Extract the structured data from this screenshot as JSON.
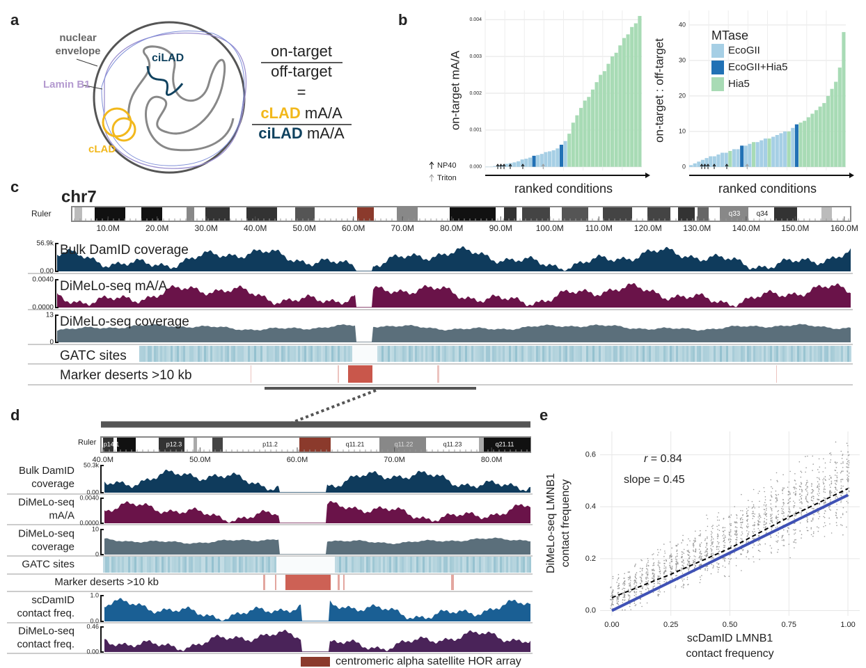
{
  "panel_a": {
    "letter": "a",
    "nuclear": "nuclear",
    "envelope": "envelope",
    "lamin": "Lamin B1",
    "cilad": "ciLAD",
    "clad": "cLAD",
    "numerator": "on-target",
    "denominator": "off-target",
    "equals": "=",
    "clad_term": "cLAD",
    "num_unit": "mA/A",
    "cilad_term": "ciLAD",
    "den_unit": "mA/A"
  },
  "panel_b": {
    "letter": "b",
    "detergents": [
      "NP40",
      "Triton"
    ],
    "legend": {
      "title": "MTase",
      "items": [
        {
          "name": "EcoGII",
          "color": "#a6cfe5"
        },
        {
          "name": "EcoGII+Hia5",
          "color": "#2171b5"
        },
        {
          "name": "Hia5",
          "color": "#a8dbb5"
        }
      ]
    },
    "charts": [
      {
        "type": "bar",
        "ylabel": "on-target mA/A",
        "xlabel": "ranked conditions",
        "ylim": [
          -0.0001,
          0.00425
        ],
        "yticks": [
          {
            "value": 0,
            "label": "0.000"
          },
          {
            "value": 0.001,
            "label": "0.001"
          },
          {
            "value": 0.002,
            "label": "0.002"
          },
          {
            "value": 0.003,
            "label": "0.003"
          },
          {
            "value": 0.004,
            "label": "0.004"
          }
        ],
        "values": [
          0,
          0,
          2e-05,
          3e-05,
          5e-05,
          8e-05,
          0.0001,
          0.00012,
          0.00015,
          0.0002,
          0.00022,
          0.00025,
          0.0003,
          0.00032,
          0.00035,
          0.0004,
          0.00042,
          0.00045,
          0.0005,
          0.0006,
          0.0007,
          0.0009,
          0.0012,
          0.0014,
          0.0016,
          0.0018,
          0.0019,
          0.0021,
          0.0023,
          0.0025,
          0.0026,
          0.0028,
          0.003,
          0.0031,
          0.0033,
          0.0035,
          0.0036,
          0.0038,
          0.0039,
          0.0041
        ],
        "groups": [
          0,
          0,
          0,
          0,
          0,
          0,
          0,
          0,
          0,
          0,
          0,
          0,
          1,
          0,
          0,
          0,
          0,
          0,
          0,
          1,
          0,
          2,
          2,
          2,
          2,
          2,
          2,
          2,
          2,
          2,
          2,
          2,
          2,
          2,
          2,
          2,
          2,
          2,
          2,
          2
        ]
      },
      {
        "type": "bar",
        "ylabel": "on-target : off-target",
        "xlabel": "ranked conditions",
        "ylim": [
          -1,
          44.1
        ],
        "yticks": [
          0,
          10,
          20,
          30,
          40
        ],
        "values": [
          0.5,
          1,
          1.5,
          2,
          2.5,
          3,
          3,
          3.5,
          4,
          4,
          4.5,
          5,
          5,
          6,
          6,
          6.5,
          7,
          7,
          7.5,
          8,
          8,
          8.5,
          9,
          9.5,
          10,
          10,
          11,
          12,
          12.5,
          13,
          14,
          15,
          16,
          17,
          18,
          20,
          22,
          24,
          28,
          38
        ],
        "groups": [
          0,
          0,
          0,
          0,
          0,
          0,
          0,
          0,
          0,
          0,
          2,
          0,
          0,
          1,
          0,
          0,
          2,
          0,
          0,
          0,
          2,
          0,
          0,
          0,
          0,
          2,
          0,
          1,
          2,
          2,
          2,
          2,
          2,
          2,
          2,
          2,
          2,
          2,
          2,
          2
        ]
      }
    ]
  },
  "panel_c": {
    "letter": "c",
    "chrom": "chr7",
    "ruler": "Ruler",
    "xlim": [
      2.6,
      161.3
    ],
    "bands": [
      "q33",
      "q34"
    ],
    "xticks": [
      {
        "value": 10,
        "label": "10.0M"
      },
      {
        "value": 20,
        "label": "20.0M"
      },
      {
        "value": 30,
        "label": "30.0M"
      },
      {
        "value": 40,
        "label": "40.0M"
      },
      {
        "value": 50,
        "label": "50.0M"
      },
      {
        "value": 60,
        "label": "60.0M"
      },
      {
        "value": 70,
        "label": "70.0M"
      },
      {
        "value": 80,
        "label": "80.0M"
      },
      {
        "value": 90,
        "label": "90.0M"
      },
      {
        "value": 100,
        "label": "100.0M"
      },
      {
        "value": 110,
        "label": "110.0M"
      },
      {
        "value": 120,
        "label": "120.0M"
      },
      {
        "value": 130,
        "label": "130.0M"
      },
      {
        "value": 140,
        "label": "140.0M"
      },
      {
        "value": 150,
        "label": "150.0M"
      },
      {
        "value": 160,
        "label": "160.0M"
      }
    ],
    "tracks": [
      {
        "label": "Bulk DamID coverage",
        "color": "#0f3b5c",
        "ylim": [
          0,
          56900
        ],
        "yticks": [
          {
            "value": 56900,
            "label": "56.9k"
          },
          {
            "value": 0,
            "label": "0.00"
          }
        ]
      },
      {
        "label": "DiMeLo-seq mA/A",
        "color": "#6a1349",
        "ylim": [
          0,
          0.004
        ],
        "yticks": [
          {
            "value": 0.004,
            "label": "0.0040"
          },
          {
            "value": 0,
            "label": "0.0000"
          }
        ]
      },
      {
        "label": "DiMeLo-seq coverage",
        "color": "#5b6f7b",
        "ylim": [
          0,
          13
        ],
        "yticks": [
          13,
          0
        ]
      },
      {
        "label": "GATC sites"
      },
      {
        "label": "Marker deserts >10 kb"
      }
    ]
  },
  "panel_d": {
    "letter": "d",
    "ruler": "Ruler",
    "xlim": [
      39.8,
      84.0
    ],
    "bands": [
      "p14.1",
      "p12.3",
      "p11.2",
      "q11.21",
      "q11.22",
      "q11.23",
      "q21.11"
    ],
    "xticks": [
      {
        "value": 40,
        "label": "40.0M"
      },
      {
        "value": 50,
        "label": "50.0M"
      },
      {
        "value": 60,
        "label": "60.0M"
      },
      {
        "value": 70,
        "label": "70.0M"
      },
      {
        "value": 80,
        "label": "80.0M"
      }
    ],
    "tracks": [
      {
        "label": [
          "Bulk DamID",
          "coverage"
        ],
        "color": "#0f3b5c",
        "ylim": [
          0,
          50300
        ],
        "yticks": [
          {
            "value": 50300,
            "label": "50.3k"
          },
          {
            "value": 0,
            "label": "0.00"
          }
        ]
      },
      {
        "label": [
          "DiMeLo-seq",
          "mA/A"
        ],
        "color": "#6a1349",
        "ylim": [
          0,
          0.004
        ],
        "yticks": [
          {
            "value": 0.004,
            "label": "0.0040"
          },
          {
            "value": 0,
            "label": "0.0000"
          }
        ]
      },
      {
        "label": [
          "DiMeLo-seq",
          "coverage"
        ],
        "color": "#5b6f7b",
        "ylim": [
          0,
          10
        ],
        "yticks": [
          10,
          0
        ]
      },
      {
        "label": [
          "GATC sites"
        ]
      },
      {
        "label": [
          "Marker deserts >10 kb"
        ]
      },
      {
        "label": [
          "scDamID",
          "contact freq."
        ],
        "color": "#1a5f94",
        "ylim": [
          0,
          1
        ],
        "yticks": [
          {
            "value": 1,
            "label": "1.0"
          },
          {
            "value": 0,
            "label": "0.0"
          }
        ]
      },
      {
        "label": [
          "DiMeLo-seq",
          "contact freq."
        ],
        "color": "#4a2359",
        "ylim": [
          0,
          0.46
        ],
        "yticks": [
          0.46,
          {
            "value": 0,
            "label": "0.00"
          }
        ]
      }
    ],
    "legend": {
      "name": "centromeric alpha satellite HOR array",
      "color": "#8b3a2c"
    }
  },
  "panel_e": {
    "letter": "e",
    "type": "scatter",
    "r_symbol": "r",
    "r_text": "= 0.84",
    "slope_text": "slope = 0.45",
    "ylabel": [
      "DiMeLo-seq LMNB1",
      "contact frequency"
    ],
    "xlabel": [
      "scDamID LMNB1",
      "contact frequency"
    ],
    "xlim": [
      -0.05,
      1.05
    ],
    "ylim": [
      -0.02,
      0.69
    ],
    "xticks": [
      {
        "value": 0,
        "label": "0.00"
      },
      {
        "value": 0.25,
        "label": "0.25"
      },
      {
        "value": 0.5,
        "label": "0.50"
      },
      {
        "value": 0.75,
        "label": "0.75"
      },
      {
        "value": 1,
        "label": "1.00"
      }
    ],
    "yticks": [
      {
        "value": 0,
        "label": "0.0"
      },
      0.2,
      0.4,
      0.6
    ],
    "fit": {
      "color": "#3f51b5",
      "x": [
        0,
        1
      ],
      "y": [
        0,
        0.445
      ]
    },
    "smooth": {
      "color": "#000000",
      "x": [
        0,
        0.25,
        0.5,
        0.75,
        1
      ],
      "y": [
        0.05,
        0.14,
        0.24,
        0.36,
        0.47
      ]
    }
  }
}
